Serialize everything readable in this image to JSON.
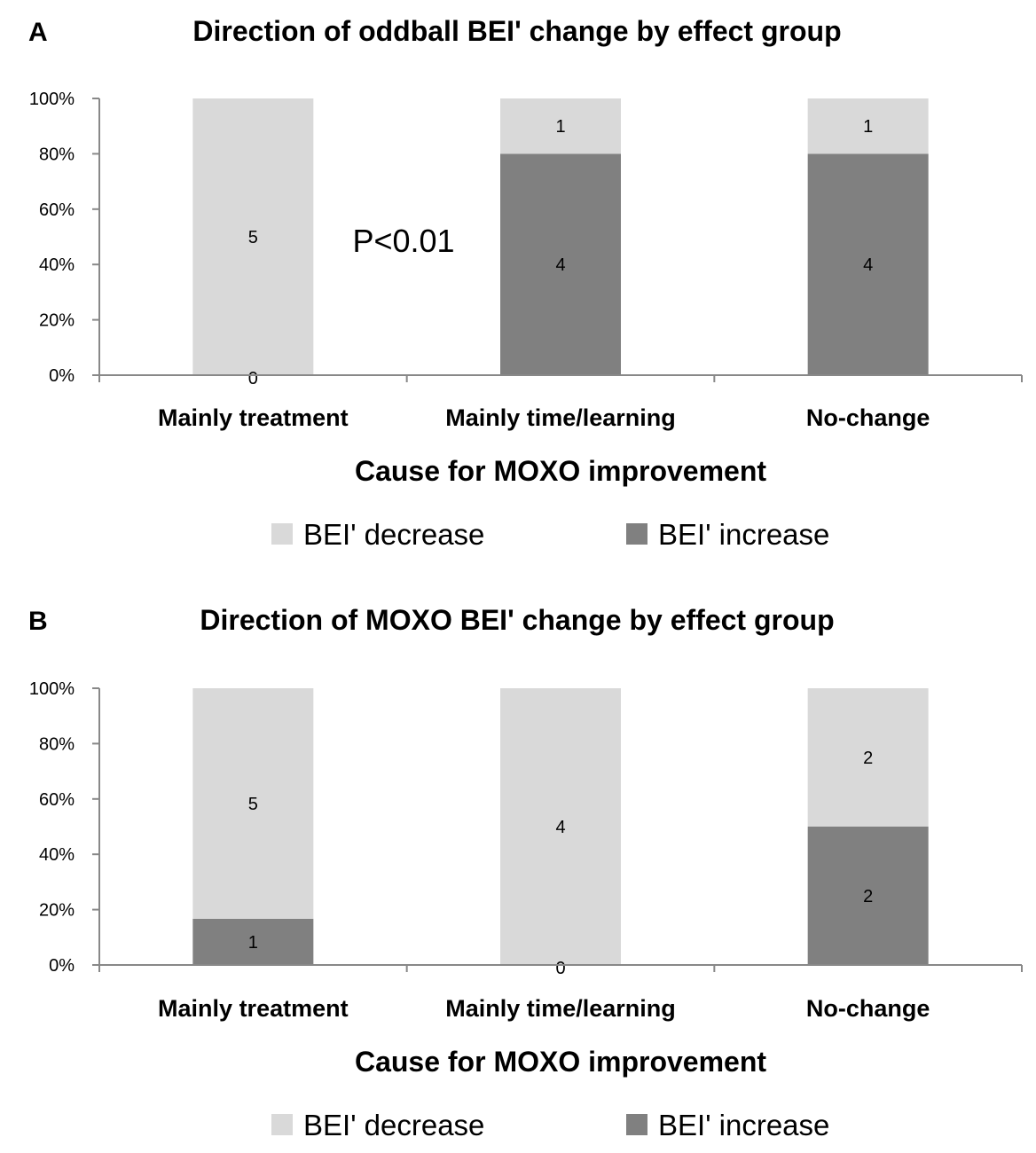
{
  "chart_data": [
    {
      "type": "bar",
      "stacked": true,
      "normalized": true,
      "panel": "A",
      "title": "Direction of oddball BEI' change by effect group",
      "xlabel": "Cause for MOXO improvement",
      "ylabel": "",
      "ylim": [
        0,
        100
      ],
      "yticks": [
        "0%",
        "20%",
        "40%",
        "60%",
        "80%",
        "100%"
      ],
      "categories": [
        "Mainly treatment",
        "Mainly time/learning",
        "No-change"
      ],
      "series": [
        {
          "name": "BEI' increase",
          "color": "#808080",
          "counts": [
            0,
            4,
            4
          ],
          "percent": [
            0,
            80,
            80
          ]
        },
        {
          "name": "BEI' decrease",
          "color": "#d9d9d9",
          "counts": [
            5,
            1,
            1
          ],
          "percent": [
            100,
            20,
            20
          ]
        }
      ],
      "legend": [
        "BEI' decrease",
        "BEI' increase"
      ],
      "legend_position": "bottom",
      "annotation": "P<0.01"
    },
    {
      "type": "bar",
      "stacked": true,
      "normalized": true,
      "panel": "B",
      "title": "Direction of MOXO BEI' change by effect group",
      "xlabel": "Cause for MOXO improvement",
      "ylabel": "",
      "ylim": [
        0,
        100
      ],
      "yticks": [
        "0%",
        "20%",
        "40%",
        "60%",
        "80%",
        "100%"
      ],
      "categories": [
        "Mainly treatment",
        "Mainly time/learning",
        "No-change"
      ],
      "series": [
        {
          "name": "BEI' increase",
          "color": "#808080",
          "counts": [
            1,
            0,
            2
          ],
          "percent": [
            16.7,
            0,
            50
          ]
        },
        {
          "name": "BEI' decrease",
          "color": "#d9d9d9",
          "counts": [
            5,
            4,
            2
          ],
          "percent": [
            83.3,
            100,
            50
          ]
        }
      ],
      "legend": [
        "BEI' decrease",
        "BEI' increase"
      ],
      "legend_position": "bottom",
      "annotation": ""
    }
  ]
}
